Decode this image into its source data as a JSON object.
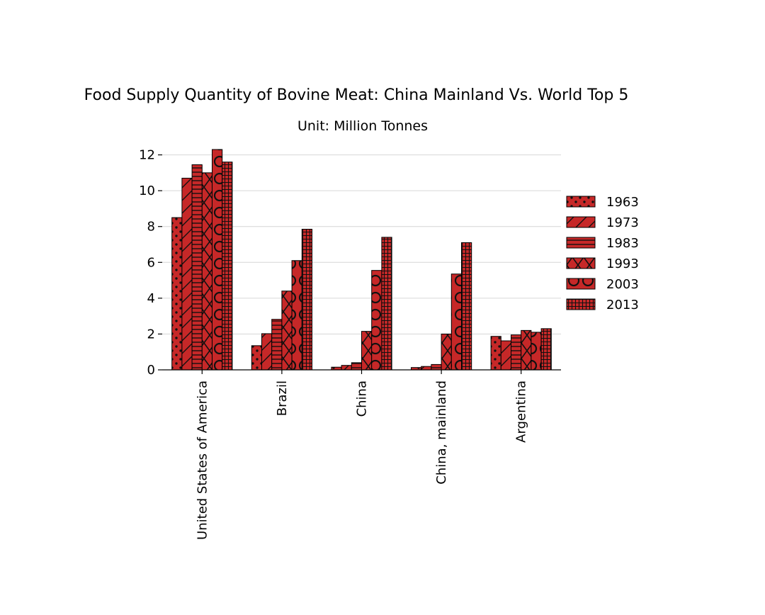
{
  "chart_data": {
    "type": "bar",
    "title": "Food Supply Quantity of Bovine Meat: China Mainland Vs. World Top 5",
    "subtitle": "Unit: Million Tonnes",
    "xlabel": "",
    "ylabel": "",
    "ylim": [
      0,
      12.3
    ],
    "yticks": [
      0,
      2,
      4,
      6,
      8,
      10,
      12
    ],
    "grid": "y",
    "legend": "right",
    "bar_color": "#c62828",
    "edge_color": "#000000",
    "grid_color": "#d6d6d6",
    "categories": [
      "United States of America",
      "Brazil",
      "China",
      "China, mainland",
      "Argentina"
    ],
    "series": [
      {
        "name": "1963",
        "hatch": "dots",
        "values": [
          8.5,
          1.35,
          0.15,
          0.13,
          1.87
        ]
      },
      {
        "name": "1973",
        "hatch": "diagonal",
        "values": [
          10.7,
          2.02,
          0.25,
          0.19,
          1.62
        ]
      },
      {
        "name": "1983",
        "hatch": "horizontal",
        "values": [
          11.45,
          2.82,
          0.4,
          0.3,
          1.95
        ]
      },
      {
        "name": "1993",
        "hatch": "cross-x",
        "values": [
          11.0,
          4.4,
          2.15,
          2.0,
          2.2
        ]
      },
      {
        "name": "2003",
        "hatch": "circles",
        "values": [
          12.3,
          6.1,
          5.55,
          5.35,
          2.1
        ]
      },
      {
        "name": "2013",
        "hatch": "grid",
        "values": [
          11.6,
          7.85,
          7.4,
          7.1,
          2.3
        ]
      }
    ]
  }
}
